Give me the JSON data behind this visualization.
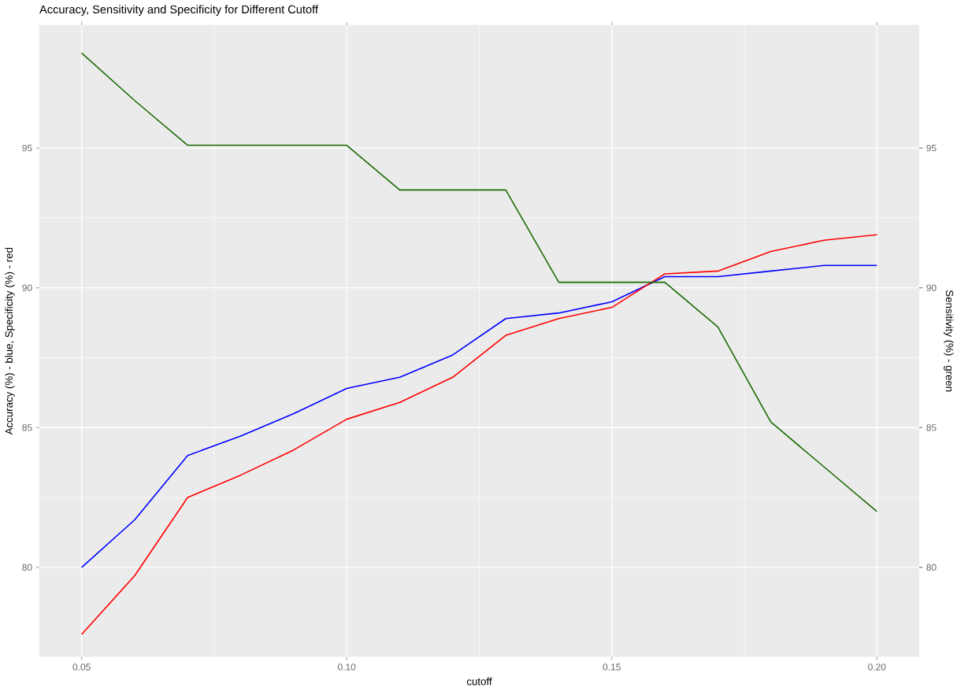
{
  "chart_data": {
    "type": "line",
    "title": "Accuracy, Sensitivity and Specificity for Different Cutoff",
    "xlabel": "cutoff",
    "ylabel": "Accuracy (%) - blue, Specificity (%) - red",
    "y2label": "Sensitivity (%) - green",
    "x": [
      0.05,
      0.06,
      0.07,
      0.08,
      0.09,
      0.1,
      0.11,
      0.12,
      0.13,
      0.14,
      0.15,
      0.16,
      0.17,
      0.18,
      0.19,
      0.2
    ],
    "series": [
      {
        "color": "#0000ff",
        "values": [
          80.0,
          81.7,
          84.0,
          84.7,
          85.5,
          86.4,
          86.8,
          87.6,
          88.9,
          89.1,
          89.5,
          90.4,
          90.4,
          90.6,
          90.8,
          90.8
        ]
      },
      {
        "color": "#ff0000",
        "values": [
          77.6,
          79.7,
          82.5,
          83.3,
          84.2,
          85.3,
          85.9,
          86.8,
          88.3,
          88.9,
          89.3,
          90.5,
          90.6,
          91.3,
          91.7,
          91.9
        ]
      },
      {
        "color": "#1a6b00",
        "axis": "y2",
        "values": [
          98.4,
          96.7,
          95.1,
          95.1,
          95.1,
          95.1,
          93.5,
          93.5,
          93.5,
          90.2,
          90.2,
          90.2,
          88.6,
          85.2,
          83.6,
          82.0
        ]
      }
    ],
    "xlim": [
      0.042,
      0.208
    ],
    "ylim": [
      76.8,
      99.4
    ],
    "y2lim": [
      76.8,
      99.4
    ],
    "xticks": [
      0.05,
      {
        "value": 0.1,
        "label": "0.10"
      },
      0.15,
      {
        "value": 0.2,
        "label": "0.20"
      }
    ],
    "yticks": [
      80,
      85,
      90,
      95
    ],
    "y2ticks": [
      80,
      85,
      90,
      95
    ],
    "grid": true,
    "marker": "none",
    "line_style": "solid"
  }
}
